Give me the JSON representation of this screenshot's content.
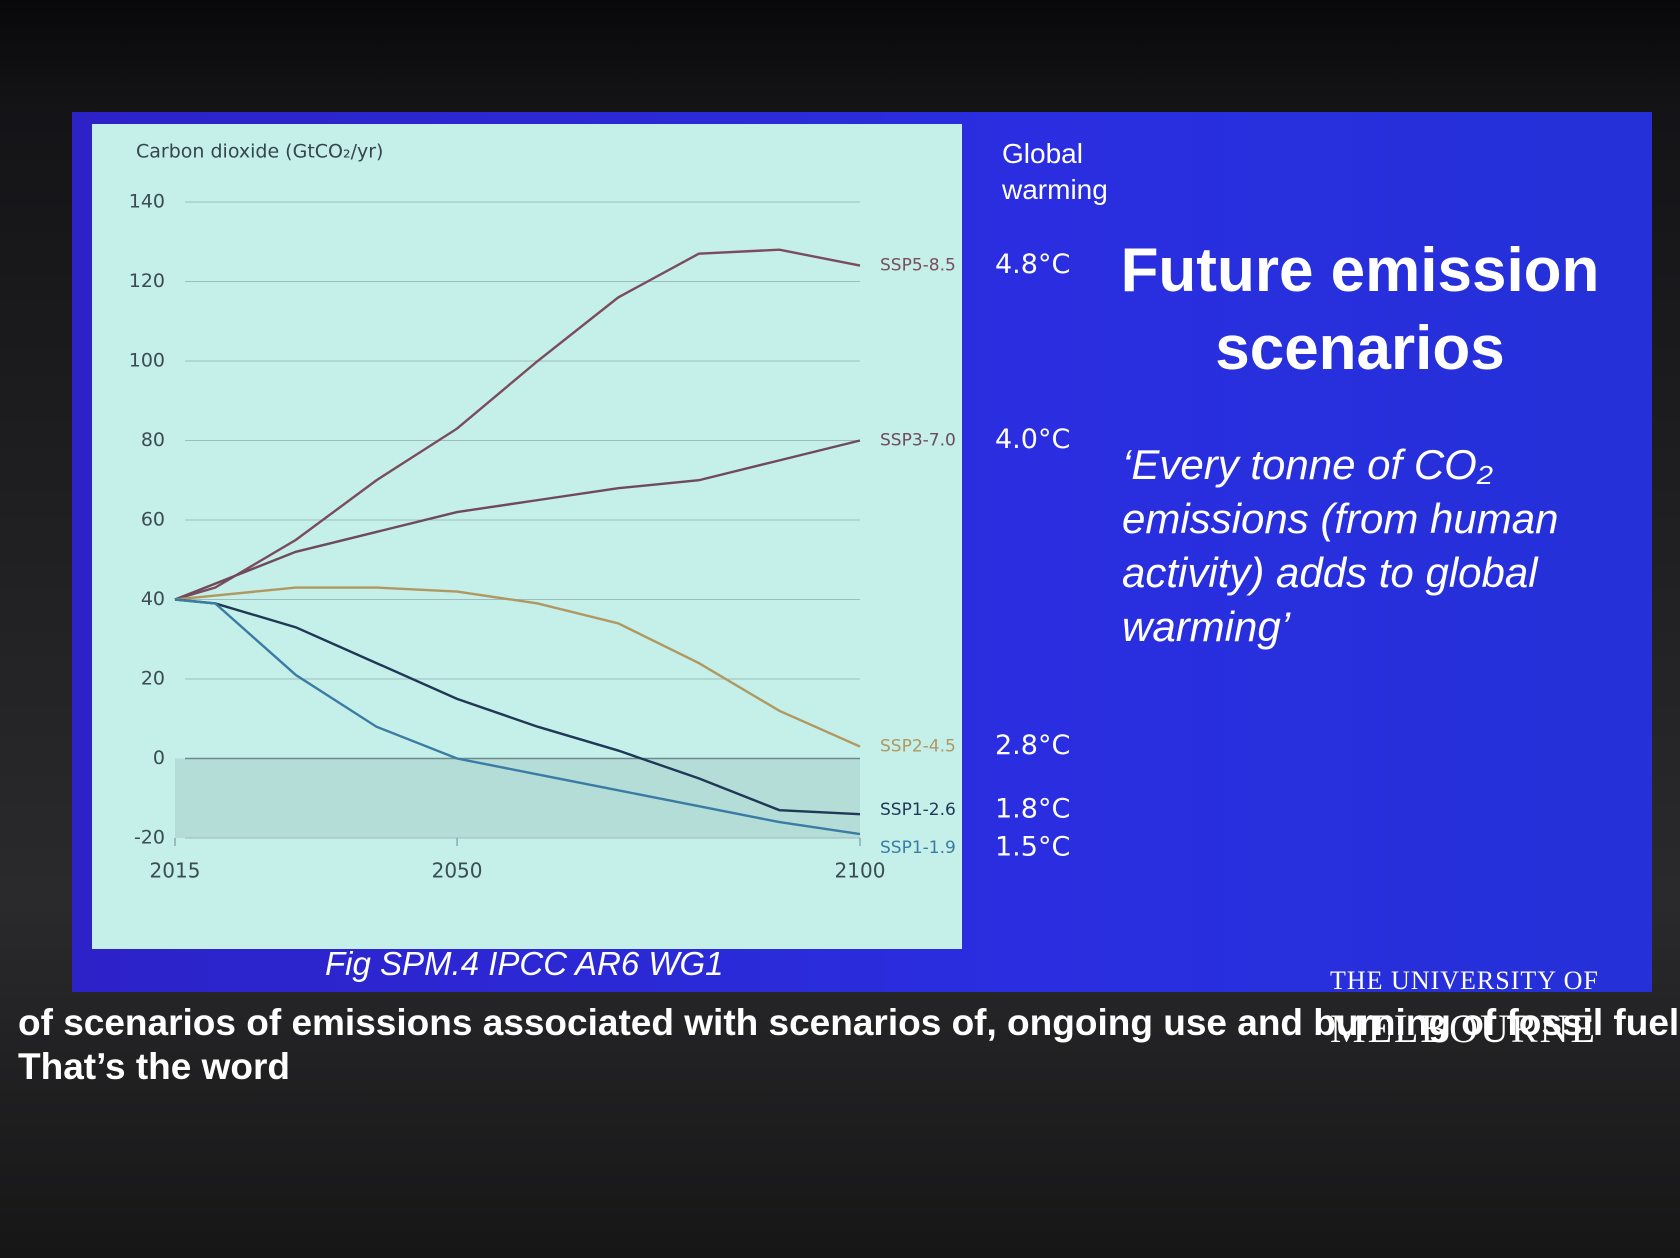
{
  "chart_data": {
    "type": "line",
    "y_label": "Carbon dioxide (GtCO₂/yr)",
    "warming_header": "Global warming",
    "x": [
      2015,
      2020,
      2030,
      2040,
      2050,
      2060,
      2070,
      2080,
      2090,
      2100
    ],
    "xlim": [
      2015,
      2100
    ],
    "xticks": [
      2015,
      2050,
      2100
    ],
    "ylim": [
      -20,
      140
    ],
    "yticks": [
      -20,
      0,
      20,
      40,
      60,
      80,
      100,
      120,
      140
    ],
    "grid": true,
    "series": [
      {
        "name": "SSP5-8.5",
        "warming": "4.8°C",
        "color": "#7a4c5c",
        "values": [
          40,
          43,
          55,
          70,
          83,
          100,
          116,
          127,
          128,
          124
        ]
      },
      {
        "name": "SSP3-7.0",
        "warming": "4.0°C",
        "color": "#6e4a5a",
        "values": [
          40,
          44,
          52,
          57,
          62,
          65,
          68,
          70,
          75,
          80
        ]
      },
      {
        "name": "SSP2-4.5",
        "warming": "2.8°C",
        "color": "#b09860",
        "values": [
          40,
          41,
          43,
          43,
          42,
          39,
          34,
          24,
          12,
          3
        ]
      },
      {
        "name": "SSP1-2.6",
        "warming": "1.8°C",
        "color": "#1e3856",
        "values": [
          40,
          39,
          33,
          24,
          15,
          8,
          2,
          -5,
          -13,
          -14
        ]
      },
      {
        "name": "SSP1-1.9",
        "warming": "1.5°C",
        "color": "#3a7ca4",
        "values": [
          40,
          39,
          21,
          8,
          0,
          -4,
          -8,
          -12,
          -16,
          -19
        ]
      }
    ]
  },
  "slide": {
    "title": "Future emission scenarios",
    "quote": "‘Every tonne of CO₂ emissions (from human activity) adds to global warming’",
    "caption": "Fig SPM.4 IPCC AR6 WG1",
    "logo": [
      "THE UNIVERSITY OF",
      "MELBOURNE"
    ]
  },
  "subtitles": [
    "of scenarios of emissions associated with scenarios of, ongoing use and burning of fossil fuels,",
    "That’s the word"
  ]
}
